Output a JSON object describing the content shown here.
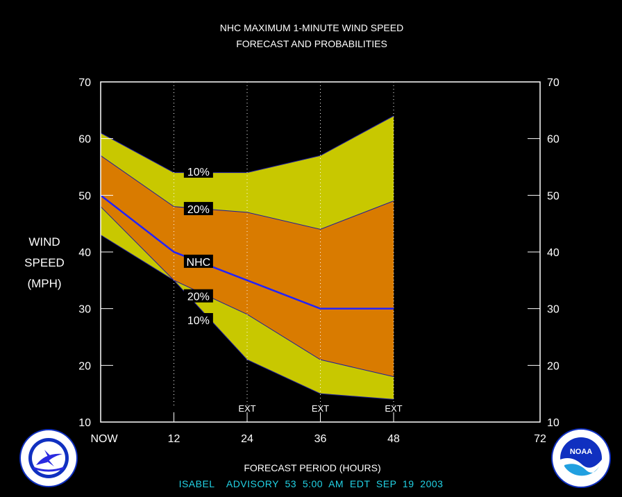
{
  "chart_data": {
    "type": "area",
    "title": "NHC MAXIMUM 1-MINUTE WIND SPEED",
    "subtitle": "FORECAST AND PROBABILITIES",
    "xlabel": "FORECAST PERIOD (HOURS)",
    "ylabel_lines": [
      "WIND",
      "SPEED",
      "(MPH)"
    ],
    "x_tick_labels": [
      "NOW",
      "12",
      "24",
      "36",
      "48",
      "72"
    ],
    "x_ticks": [
      0,
      12,
      24,
      36,
      48,
      72
    ],
    "xlim": [
      0,
      72
    ],
    "ylim": [
      10,
      70
    ],
    "y_ticks": [
      10,
      20,
      30,
      40,
      50,
      60,
      70
    ],
    "ext_label": "EXT",
    "ext_hours": [
      24,
      36,
      48
    ],
    "x": [
      0,
      12,
      24,
      36,
      48
    ],
    "bands": [
      {
        "label": "10%",
        "upper": [
          61,
          54,
          54,
          57,
          64
        ],
        "lower": [
          43,
          35,
          21,
          15,
          14
        ],
        "color": "#c8c800"
      },
      {
        "label": "20%",
        "upper": [
          57,
          48,
          47,
          44,
          49
        ],
        "lower": [
          48,
          35,
          29,
          21,
          18
        ],
        "color": "#d97b00"
      }
    ],
    "series": [
      {
        "name": "NHC",
        "x": [
          0,
          12,
          24,
          36,
          48
        ],
        "values": [
          50,
          40,
          35,
          30,
          30
        ],
        "color": "#2222ff"
      }
    ],
    "band_labels": [
      {
        "text": "10%",
        "x": 15,
        "y": 54.2
      },
      {
        "text": "20%",
        "x": 15,
        "y": 47.6
      },
      {
        "text": "NHC",
        "x": 15,
        "y": 38.3
      },
      {
        "text": "20%",
        "x": 15,
        "y": 32.2
      },
      {
        "text": "10%",
        "x": 15,
        "y": 28.0
      }
    ],
    "grid": "vertical dotted lines at 12, 24, 36, 48"
  },
  "footer": "ISABEL    ADVISORY  53  5:00  AM  EDT  SEP  19  2003",
  "logos": {
    "left": {
      "name": "nws-logo",
      "text": "NATIONAL WEATHER SERVICE",
      "color": "#1030c0"
    },
    "right": {
      "name": "noaa-logo",
      "text": "NOAA",
      "color": "#1030c0"
    }
  }
}
